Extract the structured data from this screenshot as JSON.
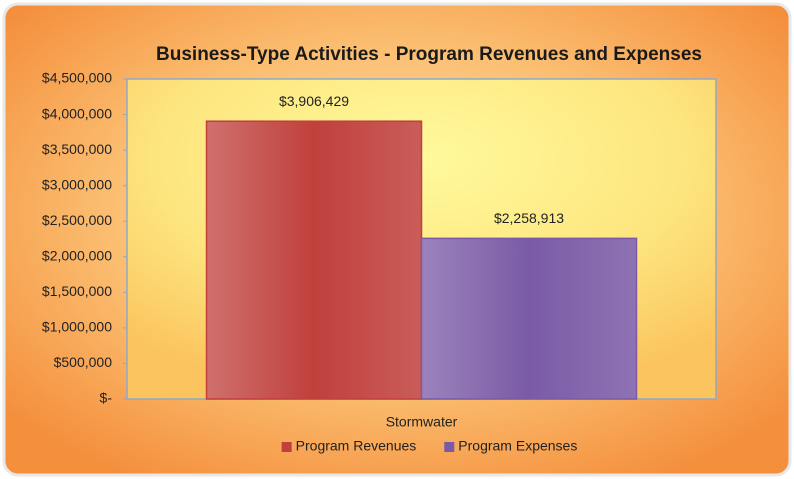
{
  "chart_data": {
    "type": "bar",
    "title": "Business-Type Activities - Program Revenues and Expenses",
    "categories": [
      "Stormwater"
    ],
    "series": [
      {
        "name": "Program Revenues",
        "color": "#c0403c",
        "values": [
          3906429
        ],
        "value_labels": [
          "$3,906,429"
        ]
      },
      {
        "name": "Program Expenses",
        "color": "#7a5aa6",
        "values": [
          2258913
        ],
        "value_labels": [
          "$2,258,913"
        ]
      }
    ],
    "ylim": [
      0,
      4500000
    ],
    "yticks": [
      {
        "value": 0,
        "label": "$-"
      },
      {
        "value": 500000,
        "label": "$500,000"
      },
      {
        "value": 1000000,
        "label": "$1,000,000"
      },
      {
        "value": 1500000,
        "label": "$1,500,000"
      },
      {
        "value": 2000000,
        "label": "$2,000,000"
      },
      {
        "value": 2500000,
        "label": "$2,500,000"
      },
      {
        "value": 3000000,
        "label": "$3,000,000"
      },
      {
        "value": 3500000,
        "label": "$3,500,000"
      },
      {
        "value": 4000000,
        "label": "$4,000,000"
      },
      {
        "value": 4500000,
        "label": "$4,500,000"
      }
    ],
    "grid": false,
    "legend": "bottom"
  }
}
